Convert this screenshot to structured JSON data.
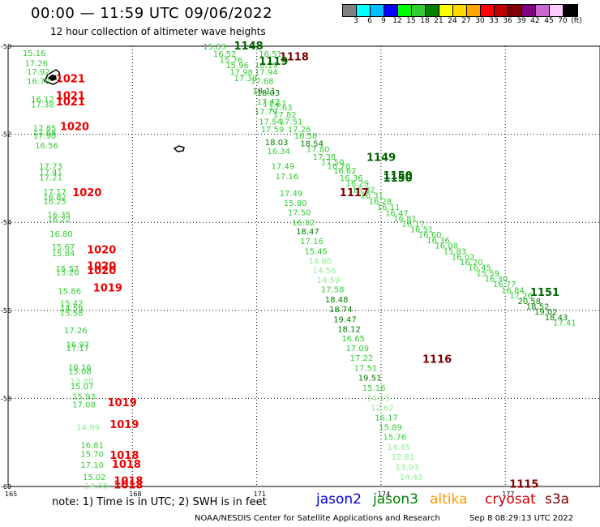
{
  "title": "00:00 — 11:59 UTC 09/06/2022",
  "subtitle": "12 hour collection of altimeter wave heights",
  "legend": {
    "colors": [
      "#808080",
      "#00ffff",
      "#00bfff",
      "#0000ff",
      "#00ff00",
      "#32cd32",
      "#008000",
      "#ffff00",
      "#ffd700",
      "#ffa500",
      "#ff0000",
      "#c00000",
      "#800000",
      "#800080",
      "#cc66cc",
      "#ffccff",
      "#000000"
    ],
    "labels": [
      "3",
      "6",
      "9",
      "12",
      "15",
      "18",
      "21",
      "24",
      "27",
      "30",
      "33",
      "36",
      "39",
      "42",
      "45",
      "70",
      "(ft)"
    ]
  },
  "axes": {
    "lat_ticks": [
      "-50",
      "-52",
      "-54",
      "-56",
      "-58",
      "-60"
    ],
    "lon_ticks": [
      "165",
      "168",
      "171",
      "174",
      "177"
    ]
  },
  "note": "note: 1) Time is in UTC; 2) SWH is in feet",
  "missions": [
    {
      "name": "jason2",
      "color": "#0000cc"
    },
    {
      "name": "jason3",
      "color": "#008000"
    },
    {
      "name": "altika",
      "color": "#ff9900"
    },
    {
      "name": "cryosat",
      "color": "#cc0000"
    },
    {
      "name": "s3a",
      "color": "#800000"
    }
  ],
  "credit": "NOAA/NESDIS Center for Satellite Applications and Research",
  "timestamp": "Sep  8 08:29:13 UTC 2022",
  "pressures": [
    {
      "v": "1021",
      "c": "#ee0000",
      "lat": -50.75,
      "lon": 166.15
    },
    {
      "v": "1021",
      "c": "#ee0000",
      "lat": -51.13,
      "lon": 166.15
    },
    {
      "v": "1021",
      "c": "#ee0000",
      "lat": -51.27,
      "lon": 166.15
    },
    {
      "v": "1020",
      "c": "#ee0000",
      "lat": -51.83,
      "lon": 166.25
    },
    {
      "v": "1020",
      "c": "#ee0000",
      "lat": -53.33,
      "lon": 166.55
    },
    {
      "v": "1020",
      "c": "#ee0000",
      "lat": -54.63,
      "lon": 166.9
    },
    {
      "v": "1020",
      "c": "#ee0000",
      "lat": -55.0,
      "lon": 166.9
    },
    {
      "v": "1020",
      "c": "#ee0000",
      "lat": -55.1,
      "lon": 166.9
    },
    {
      "v": "1019",
      "c": "#ee0000",
      "lat": -55.5,
      "lon": 167.05
    },
    {
      "v": "1019",
      "c": "#ee0000",
      "lat": -58.1,
      "lon": 167.4
    },
    {
      "v": "1019",
      "c": "#ee0000",
      "lat": -58.6,
      "lon": 167.45
    },
    {
      "v": "1018",
      "c": "#ee0000",
      "lat": -59.3,
      "lon": 167.45
    },
    {
      "v": "1018",
      "c": "#ee0000",
      "lat": -59.5,
      "lon": 167.5
    },
    {
      "v": "1018",
      "c": "#ee0000",
      "lat": -59.88,
      "lon": 167.55
    },
    {
      "v": "1018",
      "c": "#ee0000",
      "lat": -59.97,
      "lon": 167.55
    },
    {
      "v": "1148",
      "c": "#006400",
      "lat": -50.0,
      "lon": 170.45
    },
    {
      "v": "1118",
      "c": "#800000",
      "lat": -50.25,
      "lon": 171.55
    },
    {
      "v": "1119",
      "c": "#006400",
      "lat": -50.35,
      "lon": 171.05
    },
    {
      "v": "1149",
      "c": "#006400",
      "lat": -52.53,
      "lon": 173.65
    },
    {
      "v": "1150",
      "c": "#006400",
      "lat": -52.95,
      "lon": 174.05
    },
    {
      "v": "1150",
      "c": "#006400",
      "lat": -53.0,
      "lon": 174.05
    },
    {
      "v": "1117",
      "c": "#800000",
      "lat": -53.33,
      "lon": 173.0
    },
    {
      "v": "1116",
      "c": "#800000",
      "lat": -57.12,
      "lon": 175.0
    },
    {
      "v": "1151",
      "c": "#006400",
      "lat": -55.6,
      "lon": 177.6
    },
    {
      "v": "1115",
      "c": "#800000",
      "lat": -59.95,
      "lon": 177.1
    }
  ],
  "swh": [
    {
      "v": "15.16",
      "c": "#32cd32",
      "lat": -50.15,
      "lon": 165.35
    },
    {
      "v": "17.26",
      "c": "#32cd32",
      "lat": -50.38,
      "lon": 165.4
    },
    {
      "v": "17.92",
      "c": "#32cd32",
      "lat": -50.57,
      "lon": 165.45
    },
    {
      "v": "16.70",
      "c": "#32cd32",
      "lat": -50.78,
      "lon": 165.45
    },
    {
      "v": "16.12",
      "c": "#32cd32",
      "lat": -51.2,
      "lon": 165.55
    },
    {
      "v": "17.38",
      "c": "#32cd32",
      "lat": -51.32,
      "lon": 165.55
    },
    {
      "v": "17.85",
      "c": "#32cd32",
      "lat": -51.85,
      "lon": 165.6
    },
    {
      "v": "17.68",
      "c": "#32cd32",
      "lat": -51.95,
      "lon": 165.6
    },
    {
      "v": "17.90",
      "c": "#32cd32",
      "lat": -52.03,
      "lon": 165.6
    },
    {
      "v": "16.56",
      "c": "#32cd32",
      "lat": -52.25,
      "lon": 165.65
    },
    {
      "v": "17.73",
      "c": "#32cd32",
      "lat": -52.72,
      "lon": 165.75
    },
    {
      "v": "17.41",
      "c": "#32cd32",
      "lat": -52.85,
      "lon": 165.75
    },
    {
      "v": "17.21",
      "c": "#32cd32",
      "lat": -52.97,
      "lon": 165.75
    },
    {
      "v": "17.17",
      "c": "#32cd32",
      "lat": -53.3,
      "lon": 165.85
    },
    {
      "v": "16.82",
      "c": "#32cd32",
      "lat": -53.42,
      "lon": 165.85
    },
    {
      "v": "16.25",
      "c": "#32cd32",
      "lat": -53.52,
      "lon": 165.85
    },
    {
      "v": "16.35",
      "c": "#32cd32",
      "lat": -53.82,
      "lon": 165.95
    },
    {
      "v": "16.22",
      "c": "#32cd32",
      "lat": -53.92,
      "lon": 165.95
    },
    {
      "v": "16.80",
      "c": "#32cd32",
      "lat": -54.25,
      "lon": 166.0
    },
    {
      "v": "15.67",
      "c": "#32cd32",
      "lat": -54.55,
      "lon": 166.05
    },
    {
      "v": "15.84",
      "c": "#32cd32",
      "lat": -54.7,
      "lon": 166.05
    },
    {
      "v": "15.57",
      "c": "#32cd32",
      "lat": -55.05,
      "lon": 166.15
    },
    {
      "v": "15.20",
      "c": "#32cd32",
      "lat": -55.13,
      "lon": 166.15
    },
    {
      "v": "15.86",
      "c": "#32cd32",
      "lat": -55.55,
      "lon": 166.2
    },
    {
      "v": "15.42",
      "c": "#32cd32",
      "lat": -55.83,
      "lon": 166.25
    },
    {
      "v": "14.59",
      "c": "#32cd32",
      "lat": -55.95,
      "lon": 166.25
    },
    {
      "v": "15.58",
      "c": "#32cd32",
      "lat": -56.05,
      "lon": 166.25
    },
    {
      "v": "17.26",
      "c": "#32cd32",
      "lat": -56.45,
      "lon": 166.35
    },
    {
      "v": "16.97",
      "c": "#32cd32",
      "lat": -56.77,
      "lon": 166.4
    },
    {
      "v": "17.17",
      "c": "#32cd32",
      "lat": -56.85,
      "lon": 166.4
    },
    {
      "v": "16.16",
      "c": "#32cd32",
      "lat": -57.28,
      "lon": 166.45
    },
    {
      "v": "15.08",
      "c": "#32cd32",
      "lat": -57.38,
      "lon": 166.45
    },
    {
      "v": "13.88",
      "c": "#90ee90",
      "lat": -57.6,
      "lon": 166.5
    },
    {
      "v": "15.07",
      "c": "#32cd32",
      "lat": -57.72,
      "lon": 166.5
    },
    {
      "v": "15.93",
      "c": "#32cd32",
      "lat": -57.95,
      "lon": 166.55
    },
    {
      "v": "17.08",
      "c": "#32cd32",
      "lat": -58.13,
      "lon": 166.55
    },
    {
      "v": "14.99",
      "c": "#90ee90",
      "lat": -58.65,
      "lon": 166.65
    },
    {
      "v": "16.81",
      "c": "#32cd32",
      "lat": -59.05,
      "lon": 166.75
    },
    {
      "v": "15.70",
      "c": "#32cd32",
      "lat": -59.25,
      "lon": 166.75
    },
    {
      "v": "17.10",
      "c": "#32cd32",
      "lat": -59.5,
      "lon": 166.75
    },
    {
      "v": "15.02",
      "c": "#32cd32",
      "lat": -59.78,
      "lon": 166.8
    },
    {
      "v": "14.88",
      "c": "#90ee90",
      "lat": -59.97,
      "lon": 166.85
    },
    {
      "v": "15.83",
      "c": "#32cd32",
      "lat": -50.0,
      "lon": 169.7
    },
    {
      "v": "16.52",
      "c": "#32cd32",
      "lat": -50.17,
      "lon": 169.95
    },
    {
      "v": "16.51",
      "c": "#32cd32",
      "lat": -50.17,
      "lon": 171.05
    },
    {
      "v": "15.76",
      "c": "#32cd32",
      "lat": -50.3,
      "lon": 170.1
    },
    {
      "v": "15.96",
      "c": "#32cd32",
      "lat": -50.42,
      "lon": 170.25
    },
    {
      "v": "16.19",
      "c": "#32cd32",
      "lat": -50.42,
      "lon": 170.95
    },
    {
      "v": "17.98",
      "c": "#32cd32",
      "lat": -50.58,
      "lon": 170.35
    },
    {
      "v": "17.94",
      "c": "#32cd32",
      "lat": -50.58,
      "lon": 170.95
    },
    {
      "v": "17.38",
      "c": "#32cd32",
      "lat": -50.72,
      "lon": 170.45
    },
    {
      "v": "17.68",
      "c": "#32cd32",
      "lat": -50.78,
      "lon": 170.85
    },
    {
      "v": "18.11",
      "c": "#008000",
      "lat": -51.0,
      "lon": 170.9
    },
    {
      "v": "18.03",
      "c": "#008000",
      "lat": -51.05,
      "lon": 171.0
    },
    {
      "v": "17.42",
      "c": "#32cd32",
      "lat": -51.25,
      "lon": 171.0
    },
    {
      "v": "17.67",
      "c": "#32cd32",
      "lat": -51.3,
      "lon": 171.15
    },
    {
      "v": "17.63",
      "c": "#32cd32",
      "lat": -51.38,
      "lon": 171.3
    },
    {
      "v": "17.79",
      "c": "#32cd32",
      "lat": -51.47,
      "lon": 170.95
    },
    {
      "v": "17.82",
      "c": "#32cd32",
      "lat": -51.55,
      "lon": 171.4
    },
    {
      "v": "17.54",
      "c": "#32cd32",
      "lat": -51.7,
      "lon": 171.05
    },
    {
      "v": "17.51",
      "c": "#32cd32",
      "lat": -51.7,
      "lon": 171.55
    },
    {
      "v": "17.59",
      "c": "#32cd32",
      "lat": -51.88,
      "lon": 171.1
    },
    {
      "v": "17.26",
      "c": "#32cd32",
      "lat": -51.88,
      "lon": 171.75
    },
    {
      "v": "16.58",
      "c": "#32cd32",
      "lat": -52.03,
      "lon": 171.9
    },
    {
      "v": "18.03",
      "c": "#008000",
      "lat": -52.17,
      "lon": 171.2
    },
    {
      "v": "18.54",
      "c": "#008000",
      "lat": -52.2,
      "lon": 172.05
    },
    {
      "v": "17.80",
      "c": "#32cd32",
      "lat": -52.33,
      "lon": 172.2
    },
    {
      "v": "16.34",
      "c": "#32cd32",
      "lat": -52.38,
      "lon": 171.25
    },
    {
      "v": "17.38",
      "c": "#32cd32",
      "lat": -52.5,
      "lon": 172.35
    },
    {
      "v": "17.49",
      "c": "#32cd32",
      "lat": -52.72,
      "lon": 171.35
    },
    {
      "v": "17.50",
      "c": "#32cd32",
      "lat": -52.62,
      "lon": 172.55
    },
    {
      "v": "16.78",
      "c": "#32cd32",
      "lat": -52.72,
      "lon": 172.7
    },
    {
      "v": "16.62",
      "c": "#32cd32",
      "lat": -52.82,
      "lon": 172.85
    },
    {
      "v": "17.16",
      "c": "#32cd32",
      "lat": -52.95,
      "lon": 171.45
    },
    {
      "v": "16.36",
      "c": "#32cd32",
      "lat": -52.98,
      "lon": 173.0
    },
    {
      "v": "16.29",
      "c": "#32cd32",
      "lat": -53.1,
      "lon": 173.15
    },
    {
      "v": "17.49",
      "c": "#32cd32",
      "lat": -53.33,
      "lon": 171.55
    },
    {
      "v": "16.82",
      "c": "#32cd32",
      "lat": -53.25,
      "lon": 173.3
    },
    {
      "v": "16.31",
      "c": "#32cd32",
      "lat": -53.38,
      "lon": 173.5
    },
    {
      "v": "15.80",
      "c": "#32cd32",
      "lat": -53.55,
      "lon": 171.65
    },
    {
      "v": "16.28",
      "c": "#32cd32",
      "lat": -53.52,
      "lon": 173.7
    },
    {
      "v": "16.11",
      "c": "#32cd32",
      "lat": -53.65,
      "lon": 173.9
    },
    {
      "v": "17.50",
      "c": "#32cd32",
      "lat": -53.77,
      "lon": 171.75
    },
    {
      "v": "16.47",
      "c": "#32cd32",
      "lat": -53.78,
      "lon": 174.1
    },
    {
      "v": "16.81",
      "c": "#32cd32",
      "lat": -53.9,
      "lon": 174.3
    },
    {
      "v": "16.82",
      "c": "#32cd32",
      "lat": -54.0,
      "lon": 171.85
    },
    {
      "v": "16.17",
      "c": "#32cd32",
      "lat": -54.02,
      "lon": 174.5
    },
    {
      "v": "16.51",
      "c": "#32cd32",
      "lat": -54.15,
      "lon": 174.7
    },
    {
      "v": "18.47",
      "c": "#008000",
      "lat": -54.2,
      "lon": 171.95
    },
    {
      "v": "16.60",
      "c": "#32cd32",
      "lat": -54.27,
      "lon": 174.9
    },
    {
      "v": "16.36",
      "c": "#32cd32",
      "lat": -54.4,
      "lon": 175.1
    },
    {
      "v": "17.16",
      "c": "#32cd32",
      "lat": -54.42,
      "lon": 172.05
    },
    {
      "v": "16.08",
      "c": "#32cd32",
      "lat": -54.52,
      "lon": 175.3
    },
    {
      "v": "15.45",
      "c": "#32cd32",
      "lat": -54.65,
      "lon": 172.15
    },
    {
      "v": "15.83",
      "c": "#32cd32",
      "lat": -54.65,
      "lon": 175.5
    },
    {
      "v": "16.02",
      "c": "#32cd32",
      "lat": -54.78,
      "lon": 175.7
    },
    {
      "v": "14.80",
      "c": "#90ee90",
      "lat": -54.87,
      "lon": 172.25
    },
    {
      "v": "16.20",
      "c": "#32cd32",
      "lat": -54.9,
      "lon": 175.9
    },
    {
      "v": "16.45",
      "c": "#32cd32",
      "lat": -55.02,
      "lon": 176.1
    },
    {
      "v": "14.56",
      "c": "#90ee90",
      "lat": -55.08,
      "lon": 172.35
    },
    {
      "v": "15.59",
      "c": "#32cd32",
      "lat": -55.15,
      "lon": 176.3
    },
    {
      "v": "16.30",
      "c": "#32cd32",
      "lat": -55.28,
      "lon": 176.5
    },
    {
      "v": "14.59",
      "c": "#90ee90",
      "lat": -55.3,
      "lon": 172.45
    },
    {
      "v": "16.77",
      "c": "#32cd32",
      "lat": -55.4,
      "lon": 176.7
    },
    {
      "v": "17.58",
      "c": "#32cd32",
      "lat": -55.52,
      "lon": 172.55
    },
    {
      "v": "16.84",
      "c": "#32cd32",
      "lat": -55.53,
      "lon": 176.9
    },
    {
      "v": "17.26",
      "c": "#32cd32",
      "lat": -55.65,
      "lon": 177.1
    },
    {
      "v": "20.58",
      "c": "#008000",
      "lat": -55.78,
      "lon": 177.3
    },
    {
      "v": "18.48",
      "c": "#008000",
      "lat": -55.75,
      "lon": 172.65
    },
    {
      "v": "18.52",
      "c": "#008000",
      "lat": -55.9,
      "lon": 177.5
    },
    {
      "v": "19.02",
      "c": "#008000",
      "lat": -56.02,
      "lon": 177.7
    },
    {
      "v": "18.74",
      "c": "#008000",
      "lat": -55.97,
      "lon": 172.75
    },
    {
      "v": "18.43",
      "c": "#008000",
      "lat": -56.15,
      "lon": 177.95
    },
    {
      "v": "17.41",
      "c": "#32cd32",
      "lat": -56.27,
      "lon": 178.15
    },
    {
      "v": "19.47",
      "c": "#008000",
      "lat": -56.2,
      "lon": 172.85
    },
    {
      "v": "18.12",
      "c": "#008000",
      "lat": -56.42,
      "lon": 172.95
    },
    {
      "v": "16.65",
      "c": "#32cd32",
      "lat": -56.63,
      "lon": 173.05
    },
    {
      "v": "17.09",
      "c": "#32cd32",
      "lat": -56.85,
      "lon": 173.15
    },
    {
      "v": "17.22",
      "c": "#32cd32",
      "lat": -57.07,
      "lon": 173.25
    },
    {
      "v": "17.51",
      "c": "#32cd32",
      "lat": -57.3,
      "lon": 173.35
    },
    {
      "v": "19.51",
      "c": "#008000",
      "lat": -57.52,
      "lon": 173.45
    },
    {
      "v": "15.16",
      "c": "#32cd32",
      "lat": -57.75,
      "lon": 173.55
    },
    {
      "v": "14.13",
      "c": "#90ee90",
      "lat": -57.98,
      "lon": 173.65
    },
    {
      "v": "12.62",
      "c": "#90ee90",
      "lat": -58.2,
      "lon": 173.75
    },
    {
      "v": "16.17",
      "c": "#32cd32",
      "lat": -58.43,
      "lon": 173.85
    },
    {
      "v": "15.89",
      "c": "#32cd32",
      "lat": -58.65,
      "lon": 173.95
    },
    {
      "v": "15.76",
      "c": "#32cd32",
      "lat": -58.87,
      "lon": 174.05
    },
    {
      "v": "14.45",
      "c": "#90ee90",
      "lat": -59.1,
      "lon": 174.15
    },
    {
      "v": "12.81",
      "c": "#90ee90",
      "lat": -59.32,
      "lon": 174.25
    },
    {
      "v": "13.93",
      "c": "#90ee90",
      "lat": -59.55,
      "lon": 174.35
    },
    {
      "v": "14.43",
      "c": "#90ee90",
      "lat": -59.78,
      "lon": 174.45
    }
  ]
}
